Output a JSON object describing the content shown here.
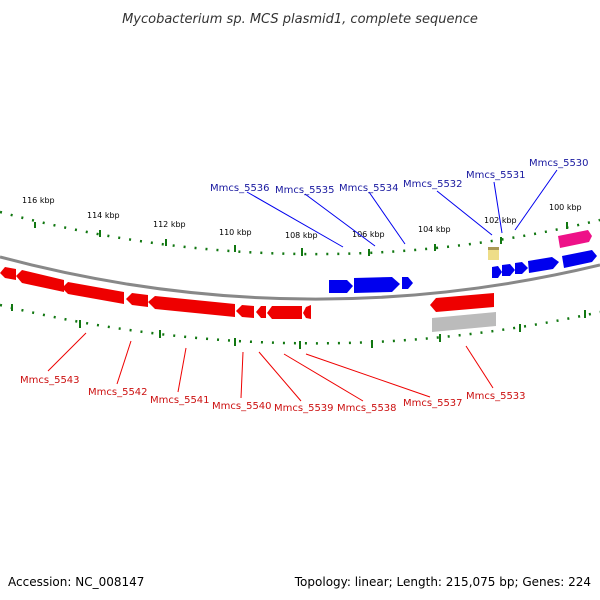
{
  "title": "Mycobacterium sp. MCS plasmid1, complete sequence",
  "footer": {
    "accession": "Accession: NC_008147",
    "summary": "Topology: linear; Length: 215,075 bp; Genes: 224"
  },
  "tick_labels": [
    "116 kbp",
    "114 kbp",
    "112 kbp",
    "110 kbp",
    "108 kbp",
    "106 kbp",
    "104 kbp",
    "102 kbp",
    "100 kbp"
  ],
  "genes_forward": [
    "Mmcs_5536",
    "Mmcs_5535",
    "Mmcs_5534",
    "Mmcs_5532",
    "Mmcs_5531",
    "Mmcs_5530"
  ],
  "genes_reverse": [
    "Mmcs_5543",
    "Mmcs_5542",
    "Mmcs_5541",
    "Mmcs_5540",
    "Mmcs_5539",
    "Mmcs_5538",
    "Mmcs_5537",
    "Mmcs_5533"
  ],
  "colors": {
    "forward": "#0000ee",
    "reverse": "#ee0000",
    "forward_label": "#1a1aa0",
    "reverse_label": "#cc1111",
    "backbone": "#888888",
    "tick": "#117711",
    "pseudogene": "#bbbbbb",
    "rna": "#ee1188",
    "other": "#eedd88"
  }
}
